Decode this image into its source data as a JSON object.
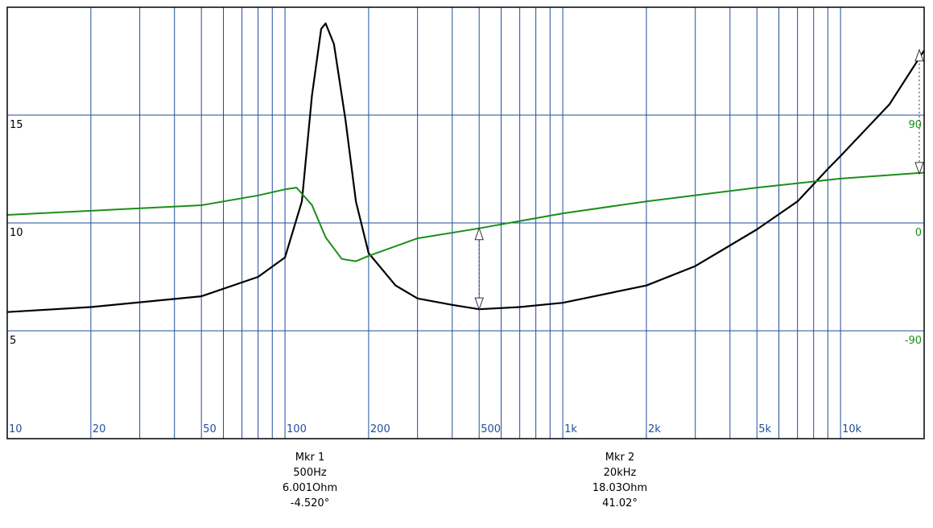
{
  "chart_data": {
    "type": "line",
    "log_x": true,
    "grid": true,
    "xlim": [
      10,
      20000
    ],
    "xticks": [
      10,
      20,
      50,
      100,
      200,
      500,
      {
        "value": 1000,
        "label": "1k"
      },
      {
        "value": 2000,
        "label": "2k"
      },
      {
        "value": 5000,
        "label": "5k"
      },
      {
        "value": 10000,
        "label": "10k"
      }
    ],
    "xgrid": [
      20,
      30,
      40,
      50,
      60,
      70,
      80,
      90,
      100,
      200,
      300,
      400,
      500,
      600,
      700,
      800,
      900,
      1000,
      2000,
      3000,
      4000,
      5000,
      6000,
      7000,
      8000,
      9000,
      10000
    ],
    "ylim": [
      0,
      20
    ],
    "yticks": [
      5,
      10,
      15
    ],
    "y2lim": [
      -180,
      180
    ],
    "y2ticks": [
      -90,
      0,
      90
    ],
    "grid_color": "#1f4e9a",
    "y2_label_color": "#1a8f1a",
    "series": [
      {
        "color": "#000000",
        "x": [
          10,
          20,
          50,
          80,
          100,
          115,
          125,
          135,
          140,
          150,
          165,
          180,
          200,
          250,
          300,
          400,
          500,
          700,
          1000,
          2000,
          3000,
          5000,
          7000,
          9000,
          10000,
          15000,
          20000
        ],
        "values": [
          5.87,
          6.1,
          6.6,
          7.5,
          8.4,
          11.0,
          15.9,
          19.0,
          19.25,
          18.3,
          14.8,
          11.0,
          8.6,
          7.1,
          6.5,
          6.2,
          6.0,
          6.1,
          6.3,
          7.1,
          8.0,
          9.7,
          11.0,
          12.5,
          13.1,
          15.5,
          18.0
        ]
      },
      {
        "color": "#1a8f1a",
        "axis": "y2",
        "x": [
          10,
          50,
          80,
          100,
          110,
          125,
          140,
          160,
          180,
          200,
          300,
          500,
          1000,
          2000,
          5000,
          10000,
          20000
        ],
        "values": [
          6.7,
          14.8,
          23,
          28,
          29.5,
          15,
          -12,
          -30,
          -32,
          -27.5,
          -12.8,
          -4.5,
          8,
          18,
          29.5,
          37,
          42
        ]
      }
    ],
    "markers": [
      {
        "x": 500,
        "impedance": 6.001,
        "phase": -4.52,
        "lines": [
          "Mkr 1",
          "500Hz",
          "6.001Ohm",
          "-4.520°"
        ]
      },
      {
        "x": 20000,
        "impedance": 18.03,
        "phase": 41.02,
        "lines": [
          "Mkr 2",
          "20kHz",
          "18.03Ohm",
          "41.02°"
        ]
      }
    ]
  }
}
